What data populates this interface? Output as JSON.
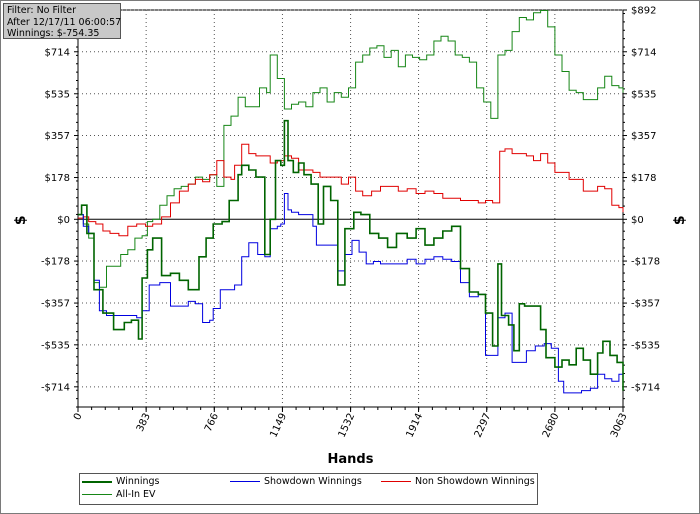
{
  "info": {
    "filter": "Filter: No Filter",
    "after": "After 12/17/11 06:00:57",
    "winnings": "Winnings: $-754.35"
  },
  "chart_data": {
    "type": "line",
    "xlabel": "Hands",
    "ylabel": "$",
    "xlim": [
      0,
      3063
    ],
    "ylim": [
      -800,
      892
    ],
    "x_ticks": [
      0,
      383,
      766,
      1149,
      1532,
      1914,
      2297,
      2680,
      3063
    ],
    "y_ticks": [
      892,
      714,
      535,
      357,
      178,
      0,
      -178,
      -357,
      -535,
      -714
    ],
    "y_tick_labels": [
      "$892",
      "$714",
      "$535",
      "$357",
      "$178",
      "$0",
      "-$178",
      "-$357",
      "-$535",
      "-$714"
    ],
    "grid": true,
    "legend_position": "bottom",
    "series": [
      {
        "name": "Winnings",
        "color": "#006400",
        "width": 1.6,
        "points": [
          [
            0,
            20
          ],
          [
            20,
            60
          ],
          [
            50,
            -60
          ],
          [
            90,
            -300
          ],
          [
            140,
            -400
          ],
          [
            200,
            -470
          ],
          [
            260,
            -440
          ],
          [
            300,
            -430
          ],
          [
            340,
            -510
          ],
          [
            360,
            -250
          ],
          [
            390,
            -130
          ],
          [
            420,
            -80
          ],
          [
            470,
            -240
          ],
          [
            520,
            -230
          ],
          [
            570,
            -260
          ],
          [
            620,
            -300
          ],
          [
            650,
            -300
          ],
          [
            680,
            -160
          ],
          [
            720,
            -80
          ],
          [
            760,
            -20
          ],
          [
            810,
            -10
          ],
          [
            850,
            80
          ],
          [
            900,
            190
          ],
          [
            920,
            230
          ],
          [
            960,
            210
          ],
          [
            1000,
            180
          ],
          [
            1050,
            -150
          ],
          [
            1080,
            0
          ],
          [
            1110,
            250
          ],
          [
            1140,
            230
          ],
          [
            1160,
            420
          ],
          [
            1180,
            250
          ],
          [
            1210,
            200
          ],
          [
            1240,
            240
          ],
          [
            1270,
            190
          ],
          [
            1310,
            150
          ],
          [
            1350,
            -20
          ],
          [
            1380,
            140
          ],
          [
            1420,
            80
          ],
          [
            1460,
            -280
          ],
          [
            1500,
            -40
          ],
          [
            1550,
            30
          ],
          [
            1590,
            20
          ],
          [
            1640,
            -60
          ],
          [
            1690,
            -80
          ],
          [
            1740,
            -120
          ],
          [
            1790,
            -60
          ],
          [
            1850,
            -80
          ],
          [
            1900,
            -40
          ],
          [
            1950,
            -110
          ],
          [
            2000,
            -80
          ],
          [
            2050,
            -50
          ],
          [
            2100,
            -30
          ],
          [
            2150,
            -210
          ],
          [
            2200,
            -310
          ],
          [
            2250,
            -320
          ],
          [
            2290,
            -400
          ],
          [
            2330,
            -540
          ],
          [
            2360,
            -190
          ],
          [
            2380,
            -410
          ],
          [
            2420,
            -450
          ],
          [
            2450,
            -560
          ],
          [
            2480,
            -360
          ],
          [
            2510,
            -370
          ],
          [
            2560,
            -370
          ],
          [
            2600,
            -470
          ],
          [
            2630,
            -590
          ],
          [
            2680,
            -630
          ],
          [
            2720,
            -600
          ],
          [
            2760,
            -620
          ],
          [
            2800,
            -550
          ],
          [
            2840,
            -600
          ],
          [
            2880,
            -660
          ],
          [
            2920,
            -570
          ],
          [
            2950,
            -520
          ],
          [
            2990,
            -580
          ],
          [
            3030,
            -610
          ],
          [
            3063,
            -730
          ]
        ]
      },
      {
        "name": "Showdown Winnings",
        "color": "#0000e0",
        "width": 1,
        "points": [
          [
            0,
            20
          ],
          [
            30,
            -30
          ],
          [
            60,
            -60
          ],
          [
            90,
            -260
          ],
          [
            120,
            -390
          ],
          [
            160,
            -410
          ],
          [
            220,
            -410
          ],
          [
            280,
            -410
          ],
          [
            330,
            -420
          ],
          [
            360,
            -390
          ],
          [
            400,
            -280
          ],
          [
            460,
            -270
          ],
          [
            520,
            -370
          ],
          [
            570,
            -370
          ],
          [
            620,
            -350
          ],
          [
            660,
            -360
          ],
          [
            700,
            -440
          ],
          [
            740,
            -430
          ],
          [
            760,
            -380
          ],
          [
            800,
            -300
          ],
          [
            840,
            -300
          ],
          [
            880,
            -280
          ],
          [
            920,
            -160
          ],
          [
            960,
            -100
          ],
          [
            1010,
            -150
          ],
          [
            1050,
            -160
          ],
          [
            1080,
            -40
          ],
          [
            1120,
            -30
          ],
          [
            1140,
            -20
          ],
          [
            1160,
            110
          ],
          [
            1180,
            40
          ],
          [
            1200,
            30
          ],
          [
            1240,
            20
          ],
          [
            1280,
            20
          ],
          [
            1320,
            -30
          ],
          [
            1340,
            -110
          ],
          [
            1380,
            -110
          ],
          [
            1420,
            -110
          ],
          [
            1460,
            -220
          ],
          [
            1500,
            -150
          ],
          [
            1540,
            -90
          ],
          [
            1580,
            -140
          ],
          [
            1620,
            -190
          ],
          [
            1660,
            -180
          ],
          [
            1700,
            -190
          ],
          [
            1750,
            -190
          ],
          [
            1800,
            -190
          ],
          [
            1850,
            -170
          ],
          [
            1900,
            -190
          ],
          [
            1950,
            -170
          ],
          [
            2000,
            -160
          ],
          [
            2050,
            -170
          ],
          [
            2100,
            -180
          ],
          [
            2150,
            -270
          ],
          [
            2200,
            -330
          ],
          [
            2250,
            -320
          ],
          [
            2290,
            -580
          ],
          [
            2320,
            -580
          ],
          [
            2360,
            -420
          ],
          [
            2400,
            -400
          ],
          [
            2440,
            -610
          ],
          [
            2480,
            -610
          ],
          [
            2520,
            -560
          ],
          [
            2570,
            -540
          ],
          [
            2620,
            -530
          ],
          [
            2660,
            -550
          ],
          [
            2700,
            -690
          ],
          [
            2730,
            -740
          ],
          [
            2780,
            -740
          ],
          [
            2830,
            -730
          ],
          [
            2880,
            -720
          ],
          [
            2920,
            -660
          ],
          [
            2960,
            -680
          ],
          [
            3000,
            -690
          ],
          [
            3040,
            -660
          ],
          [
            3063,
            -680
          ]
        ]
      },
      {
        "name": "Non Showdown Winnings",
        "color": "#e00000",
        "width": 1,
        "points": [
          [
            0,
            5
          ],
          [
            30,
            10
          ],
          [
            60,
            -10
          ],
          [
            100,
            -20
          ],
          [
            140,
            -50
          ],
          [
            180,
            -60
          ],
          [
            230,
            -70
          ],
          [
            280,
            -30
          ],
          [
            330,
            -20
          ],
          [
            380,
            -30
          ],
          [
            420,
            -20
          ],
          [
            470,
            10
          ],
          [
            520,
            70
          ],
          [
            570,
            120
          ],
          [
            620,
            150
          ],
          [
            660,
            170
          ],
          [
            700,
            160
          ],
          [
            740,
            190
          ],
          [
            780,
            250
          ],
          [
            820,
            180
          ],
          [
            860,
            170
          ],
          [
            880,
            230
          ],
          [
            920,
            320
          ],
          [
            960,
            280
          ],
          [
            1000,
            270
          ],
          [
            1040,
            270
          ],
          [
            1080,
            240
          ],
          [
            1120,
            250
          ],
          [
            1160,
            270
          ],
          [
            1200,
            260
          ],
          [
            1240,
            210
          ],
          [
            1280,
            210
          ],
          [
            1320,
            200
          ],
          [
            1360,
            180
          ],
          [
            1400,
            180
          ],
          [
            1440,
            180
          ],
          [
            1480,
            150
          ],
          [
            1520,
            180
          ],
          [
            1560,
            120
          ],
          [
            1600,
            100
          ],
          [
            1650,
            120
          ],
          [
            1700,
            140
          ],
          [
            1750,
            140
          ],
          [
            1800,
            120
          ],
          [
            1850,
            130
          ],
          [
            1900,
            110
          ],
          [
            1950,
            120
          ],
          [
            2000,
            110
          ],
          [
            2050,
            90
          ],
          [
            2100,
            90
          ],
          [
            2150,
            80
          ],
          [
            2200,
            80
          ],
          [
            2250,
            70
          ],
          [
            2290,
            80
          ],
          [
            2330,
            70
          ],
          [
            2370,
            290
          ],
          [
            2400,
            300
          ],
          [
            2440,
            280
          ],
          [
            2480,
            280
          ],
          [
            2520,
            270
          ],
          [
            2560,
            250
          ],
          [
            2600,
            280
          ],
          [
            2640,
            240
          ],
          [
            2680,
            200
          ],
          [
            2720,
            200
          ],
          [
            2760,
            170
          ],
          [
            2800,
            170
          ],
          [
            2840,
            120
          ],
          [
            2880,
            120
          ],
          [
            2920,
            140
          ],
          [
            2960,
            130
          ],
          [
            3000,
            60
          ],
          [
            3040,
            50
          ],
          [
            3063,
            30
          ]
        ]
      },
      {
        "name": "All-In EV",
        "color": "#168616",
        "width": 1,
        "points": [
          [
            0,
            20
          ],
          [
            30,
            -20
          ],
          [
            60,
            -80
          ],
          [
            90,
            -270
          ],
          [
            120,
            -290
          ],
          [
            160,
            -200
          ],
          [
            200,
            -200
          ],
          [
            240,
            -150
          ],
          [
            280,
            -130
          ],
          [
            320,
            -80
          ],
          [
            360,
            -70
          ],
          [
            390,
            -10
          ],
          [
            420,
            0
          ],
          [
            460,
            60
          ],
          [
            500,
            100
          ],
          [
            540,
            130
          ],
          [
            580,
            140
          ],
          [
            620,
            150
          ],
          [
            660,
            180
          ],
          [
            700,
            170
          ],
          [
            740,
            190
          ],
          [
            780,
            140
          ],
          [
            820,
            400
          ],
          [
            860,
            440
          ],
          [
            900,
            520
          ],
          [
            940,
            480
          ],
          [
            980,
            480
          ],
          [
            1020,
            560
          ],
          [
            1060,
            540
          ],
          [
            1080,
            700
          ],
          [
            1120,
            600
          ],
          [
            1160,
            470
          ],
          [
            1200,
            490
          ],
          [
            1240,
            500
          ],
          [
            1280,
            480
          ],
          [
            1320,
            540
          ],
          [
            1360,
            560
          ],
          [
            1400,
            500
          ],
          [
            1440,
            540
          ],
          [
            1480,
            520
          ],
          [
            1520,
            560
          ],
          [
            1560,
            670
          ],
          [
            1600,
            700
          ],
          [
            1640,
            730
          ],
          [
            1680,
            740
          ],
          [
            1720,
            690
          ],
          [
            1760,
            720
          ],
          [
            1800,
            650
          ],
          [
            1840,
            700
          ],
          [
            1880,
            690
          ],
          [
            1920,
            680
          ],
          [
            1960,
            700
          ],
          [
            2000,
            760
          ],
          [
            2040,
            780
          ],
          [
            2080,
            760
          ],
          [
            2120,
            700
          ],
          [
            2160,
            690
          ],
          [
            2200,
            670
          ],
          [
            2240,
            560
          ],
          [
            2280,
            500
          ],
          [
            2320,
            430
          ],
          [
            2360,
            700
          ],
          [
            2400,
            720
          ],
          [
            2440,
            800
          ],
          [
            2480,
            860
          ],
          [
            2520,
            850
          ],
          [
            2560,
            880
          ],
          [
            2600,
            890
          ],
          [
            2640,
            820
          ],
          [
            2680,
            700
          ],
          [
            2720,
            630
          ],
          [
            2760,
            550
          ],
          [
            2800,
            540
          ],
          [
            2840,
            510
          ],
          [
            2880,
            510
          ],
          [
            2920,
            560
          ],
          [
            2960,
            610
          ],
          [
            3000,
            570
          ],
          [
            3040,
            560
          ],
          [
            3063,
            540
          ]
        ]
      }
    ],
    "legend_rows": [
      [
        "Winnings",
        "Showdown Winnings",
        "Non Showdown Winnings"
      ],
      [
        "All-In EV"
      ]
    ]
  }
}
